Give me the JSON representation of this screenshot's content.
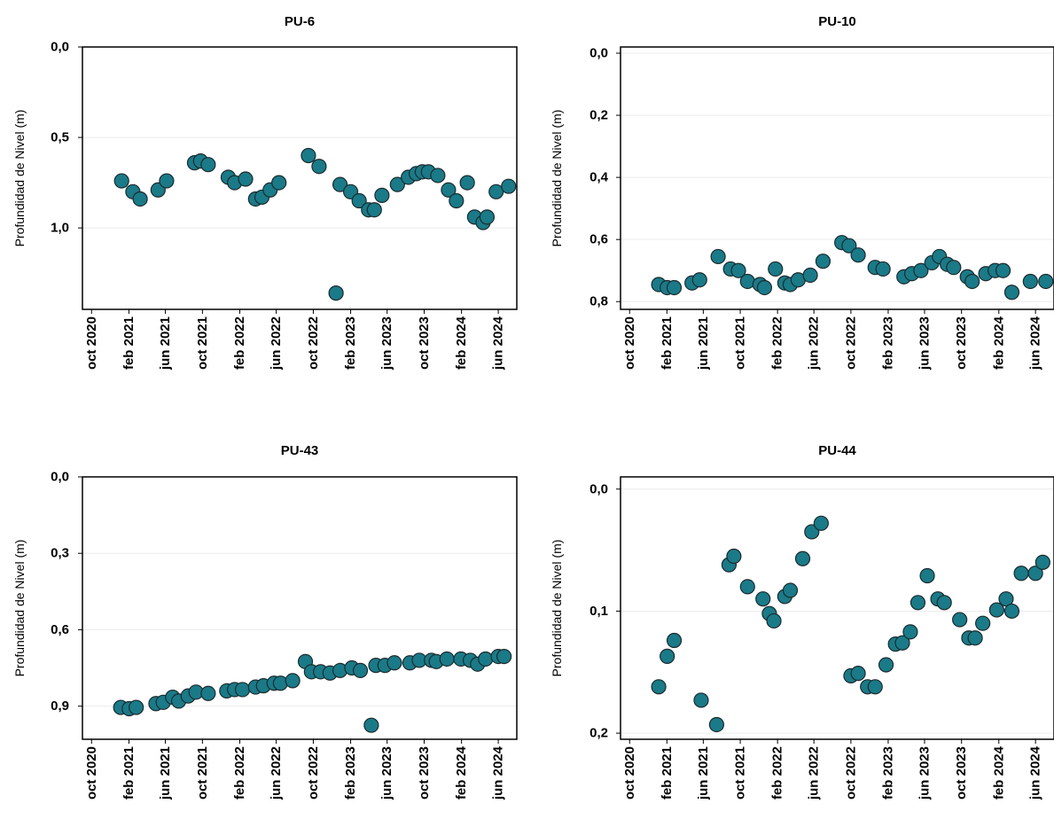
{
  "chart_data": [
    {
      "type": "scatter",
      "title": "PU-6",
      "ylabel": "Profundidad de Nivel (m)",
      "y_inverted": true,
      "ylim": [
        0.0,
        1.45
      ],
      "yticks": [
        0.0,
        0.5,
        1.0
      ],
      "ytick_labels": [
        "0,0",
        "0,5",
        "1,0"
      ],
      "xlim": [
        "2020-09-01",
        "2024-08-01"
      ],
      "xticks": [
        "2020-10-01",
        "2021-02-01",
        "2021-06-01",
        "2021-10-01",
        "2022-02-01",
        "2022-06-01",
        "2022-10-01",
        "2023-02-01",
        "2023-06-01",
        "2023-10-01",
        "2024-02-01",
        "2024-06-01"
      ],
      "xtick_labels": [
        "oct 2020",
        "feb 2021",
        "jun 2021",
        "oct 2021",
        "feb 2022",
        "jun 2022",
        "oct 2022",
        "feb 2023",
        "jun 2023",
        "oct 2023",
        "feb 2024",
        "jun 2024"
      ],
      "grid": true,
      "marker_color": "#1a7a88",
      "points": [
        [
          "2021-01-08",
          0.74
        ],
        [
          "2021-02-14",
          0.8
        ],
        [
          "2021-03-10",
          0.84
        ],
        [
          "2021-05-08",
          0.79
        ],
        [
          "2021-06-05",
          0.74
        ],
        [
          "2021-09-05",
          0.64
        ],
        [
          "2021-09-25",
          0.63
        ],
        [
          "2021-10-20",
          0.65
        ],
        [
          "2021-12-25",
          0.72
        ],
        [
          "2022-01-15",
          0.75
        ],
        [
          "2022-02-20",
          0.73
        ],
        [
          "2022-03-25",
          0.84
        ],
        [
          "2022-04-15",
          0.83
        ],
        [
          "2022-05-12",
          0.79
        ],
        [
          "2022-06-10",
          0.75
        ],
        [
          "2022-09-15",
          0.6
        ],
        [
          "2022-10-20",
          0.66
        ],
        [
          "2022-12-15",
          1.36
        ],
        [
          "2022-12-28",
          0.76
        ],
        [
          "2023-02-01",
          0.8
        ],
        [
          "2023-03-01",
          0.85
        ],
        [
          "2023-04-01",
          0.9
        ],
        [
          "2023-04-20",
          0.9
        ],
        [
          "2023-05-15",
          0.82
        ],
        [
          "2023-07-05",
          0.76
        ],
        [
          "2023-08-10",
          0.72
        ],
        [
          "2023-09-05",
          0.7
        ],
        [
          "2023-09-25",
          0.69
        ],
        [
          "2023-10-15",
          0.69
        ],
        [
          "2023-11-15",
          0.71
        ],
        [
          "2023-12-20",
          0.79
        ],
        [
          "2024-01-15",
          0.85
        ],
        [
          "2024-02-20",
          0.75
        ],
        [
          "2024-03-15",
          0.94
        ],
        [
          "2024-04-12",
          0.97
        ],
        [
          "2024-04-25",
          0.94
        ],
        [
          "2024-05-25",
          0.8
        ],
        [
          "2024-07-05",
          0.77
        ]
      ]
    },
    {
      "type": "scatter",
      "title": "PU-10",
      "ylabel": "Profundidad de Nivel (m)",
      "y_inverted": true,
      "ylim": [
        -0.02,
        0.825
      ],
      "yticks": [
        0.0,
        0.2,
        0.4,
        0.6,
        0.8
      ],
      "ytick_labels": [
        "0,0",
        "0,2",
        "0,4",
        "0,6",
        "0,8"
      ],
      "xlim": [
        "2020-09-01",
        "2024-08-01"
      ],
      "xticks": [
        "2020-10-01",
        "2021-02-01",
        "2021-06-01",
        "2021-10-01",
        "2022-02-01",
        "2022-06-01",
        "2022-10-01",
        "2023-02-01",
        "2023-06-01",
        "2023-10-01",
        "2024-02-01",
        "2024-06-01"
      ],
      "xtick_labels": [
        "oct 2020",
        "feb 2021",
        "jun 2021",
        "oct 2021",
        "feb 2022",
        "jun 2022",
        "oct 2022",
        "feb 2023",
        "jun 2023",
        "oct 2023",
        "feb 2024",
        "jun 2024"
      ],
      "grid": true,
      "marker_color": "#1a7a88",
      "points": [
        [
          "2021-01-05",
          0.745
        ],
        [
          "2021-02-02",
          0.755
        ],
        [
          "2021-02-25",
          0.755
        ],
        [
          "2021-04-25",
          0.74
        ],
        [
          "2021-05-20",
          0.73
        ],
        [
          "2021-07-20",
          0.655
        ],
        [
          "2021-08-30",
          0.695
        ],
        [
          "2021-09-25",
          0.7
        ],
        [
          "2021-10-25",
          0.735
        ],
        [
          "2021-12-05",
          0.745
        ],
        [
          "2021-12-20",
          0.755
        ],
        [
          "2022-01-25",
          0.695
        ],
        [
          "2022-02-25",
          0.74
        ],
        [
          "2022-03-15",
          0.745
        ],
        [
          "2022-04-10",
          0.73
        ],
        [
          "2022-05-20",
          0.715
        ],
        [
          "2022-07-01",
          0.67
        ],
        [
          "2022-09-01",
          0.61
        ],
        [
          "2022-09-25",
          0.62
        ],
        [
          "2022-10-25",
          0.65
        ],
        [
          "2022-12-20",
          0.69
        ],
        [
          "2023-01-15",
          0.695
        ],
        [
          "2023-03-25",
          0.72
        ],
        [
          "2023-04-20",
          0.71
        ],
        [
          "2023-05-20",
          0.7
        ],
        [
          "2023-06-25",
          0.675
        ],
        [
          "2023-07-20",
          0.655
        ],
        [
          "2023-08-15",
          0.68
        ],
        [
          "2023-09-05",
          0.69
        ],
        [
          "2023-10-20",
          0.72
        ],
        [
          "2023-11-05",
          0.735
        ],
        [
          "2023-12-20",
          0.71
        ],
        [
          "2024-01-20",
          0.7
        ],
        [
          "2024-02-15",
          0.7
        ],
        [
          "2024-03-15",
          0.77
        ],
        [
          "2024-05-15",
          0.735
        ],
        [
          "2024-07-05",
          0.735
        ]
      ]
    },
    {
      "type": "scatter",
      "title": "PU-43",
      "ylabel": "Profundidad de Nivel (m)",
      "y_inverted": true,
      "ylim": [
        0.0,
        1.03
      ],
      "yticks": [
        0.0,
        0.3,
        0.6,
        0.9
      ],
      "ytick_labels": [
        "0,0",
        "0,3",
        "0,6",
        "0,9"
      ],
      "xlim": [
        "2020-09-01",
        "2024-08-01"
      ],
      "xticks": [
        "2020-10-01",
        "2021-02-01",
        "2021-06-01",
        "2021-10-01",
        "2022-02-01",
        "2022-06-01",
        "2022-10-01",
        "2023-02-01",
        "2023-06-01",
        "2023-10-01",
        "2024-02-01",
        "2024-06-01"
      ],
      "xtick_labels": [
        "oct 2020",
        "feb 2021",
        "jun 2021",
        "oct 2021",
        "feb 2022",
        "jun 2022",
        "oct 2022",
        "feb 2023",
        "jun 2023",
        "oct 2023",
        "feb 2024",
        "jun 2024"
      ],
      "grid": true,
      "marker_color": "#1a7a88",
      "points": [
        [
          "2021-01-05",
          0.905
        ],
        [
          "2021-02-02",
          0.91
        ],
        [
          "2021-02-25",
          0.905
        ],
        [
          "2021-05-01",
          0.89
        ],
        [
          "2021-05-25",
          0.885
        ],
        [
          "2021-06-25",
          0.865
        ],
        [
          "2021-07-15",
          0.88
        ],
        [
          "2021-08-15",
          0.86
        ],
        [
          "2021-09-10",
          0.845
        ],
        [
          "2021-10-20",
          0.85
        ],
        [
          "2021-12-20",
          0.84
        ],
        [
          "2022-01-15",
          0.835
        ],
        [
          "2022-02-10",
          0.835
        ],
        [
          "2022-03-25",
          0.825
        ],
        [
          "2022-04-20",
          0.82
        ],
        [
          "2022-05-25",
          0.81
        ],
        [
          "2022-06-15",
          0.81
        ],
        [
          "2022-07-25",
          0.8
        ],
        [
          "2022-09-05",
          0.725
        ],
        [
          "2022-09-25",
          0.765
        ],
        [
          "2022-10-25",
          0.765
        ],
        [
          "2022-11-25",
          0.77
        ],
        [
          "2022-12-28",
          0.76
        ],
        [
          "2023-02-05",
          0.75
        ],
        [
          "2023-03-05",
          0.76
        ],
        [
          "2023-04-10",
          0.975
        ],
        [
          "2023-04-25",
          0.74
        ],
        [
          "2023-05-25",
          0.74
        ],
        [
          "2023-06-25",
          0.73
        ],
        [
          "2023-08-15",
          0.73
        ],
        [
          "2023-09-15",
          0.72
        ],
        [
          "2023-10-25",
          0.72
        ],
        [
          "2023-11-10",
          0.725
        ],
        [
          "2023-12-15",
          0.715
        ],
        [
          "2024-01-30",
          0.715
        ],
        [
          "2024-03-01",
          0.72
        ],
        [
          "2024-03-25",
          0.735
        ],
        [
          "2024-04-20",
          0.715
        ],
        [
          "2024-06-01",
          0.705
        ],
        [
          "2024-06-20",
          0.705
        ]
      ]
    },
    {
      "type": "scatter",
      "title": "PU-44",
      "ylabel": "Profundidad de Nivel (m)",
      "y_inverted": true,
      "ylim": [
        -0.01,
        0.205
      ],
      "yticks": [
        0.0,
        0.1,
        0.2
      ],
      "ytick_labels": [
        "0,0",
        "0,1",
        "0,2"
      ],
      "xlim": [
        "2020-09-01",
        "2024-08-01"
      ],
      "xticks": [
        "2020-10-01",
        "2021-02-01",
        "2021-06-01",
        "2021-10-01",
        "2022-02-01",
        "2022-06-01",
        "2022-10-01",
        "2023-02-01",
        "2023-06-01",
        "2023-10-01",
        "2024-02-01",
        "2024-06-01"
      ],
      "xtick_labels": [
        "oct 2020",
        "feb 2021",
        "jun 2021",
        "oct 2021",
        "feb 2022",
        "jun 2022",
        "oct 2022",
        "feb 2023",
        "jun 2023",
        "oct 2023",
        "feb 2024",
        "jun 2024"
      ],
      "grid": true,
      "marker_color": "#1a7a88",
      "points": [
        [
          "2021-01-05",
          0.162
        ],
        [
          "2021-02-02",
          0.137
        ],
        [
          "2021-02-25",
          0.124
        ],
        [
          "2021-05-25",
          0.173
        ],
        [
          "2021-07-15",
          0.193
        ],
        [
          "2021-08-25",
          0.062
        ],
        [
          "2021-09-10",
          0.055
        ],
        [
          "2021-10-25",
          0.08
        ],
        [
          "2021-12-15",
          0.09
        ],
        [
          "2022-01-05",
          0.102
        ],
        [
          "2022-01-20",
          0.108
        ],
        [
          "2022-02-25",
          0.088
        ],
        [
          "2022-03-15",
          0.083
        ],
        [
          "2022-04-25",
          0.057
        ],
        [
          "2022-05-25",
          0.035
        ],
        [
          "2022-06-25",
          0.028
        ],
        [
          "2022-10-01",
          0.153
        ],
        [
          "2022-10-25",
          0.151
        ],
        [
          "2022-11-25",
          0.162
        ],
        [
          "2022-12-20",
          0.162
        ],
        [
          "2023-01-25",
          0.144
        ],
        [
          "2023-02-25",
          0.127
        ],
        [
          "2023-03-20",
          0.126
        ],
        [
          "2023-04-15",
          0.117
        ],
        [
          "2023-05-10",
          0.093
        ],
        [
          "2023-06-10",
          0.071
        ],
        [
          "2023-07-15",
          0.09
        ],
        [
          "2023-08-05",
          0.093
        ],
        [
          "2023-09-25",
          0.107
        ],
        [
          "2023-10-25",
          0.122
        ],
        [
          "2023-11-15",
          0.122
        ],
        [
          "2023-12-10",
          0.11
        ],
        [
          "2024-01-25",
          0.099
        ],
        [
          "2024-02-25",
          0.09
        ],
        [
          "2024-03-15",
          0.1
        ],
        [
          "2024-04-15",
          0.069
        ],
        [
          "2024-06-01",
          0.069
        ],
        [
          "2024-06-25",
          0.06
        ]
      ]
    }
  ]
}
